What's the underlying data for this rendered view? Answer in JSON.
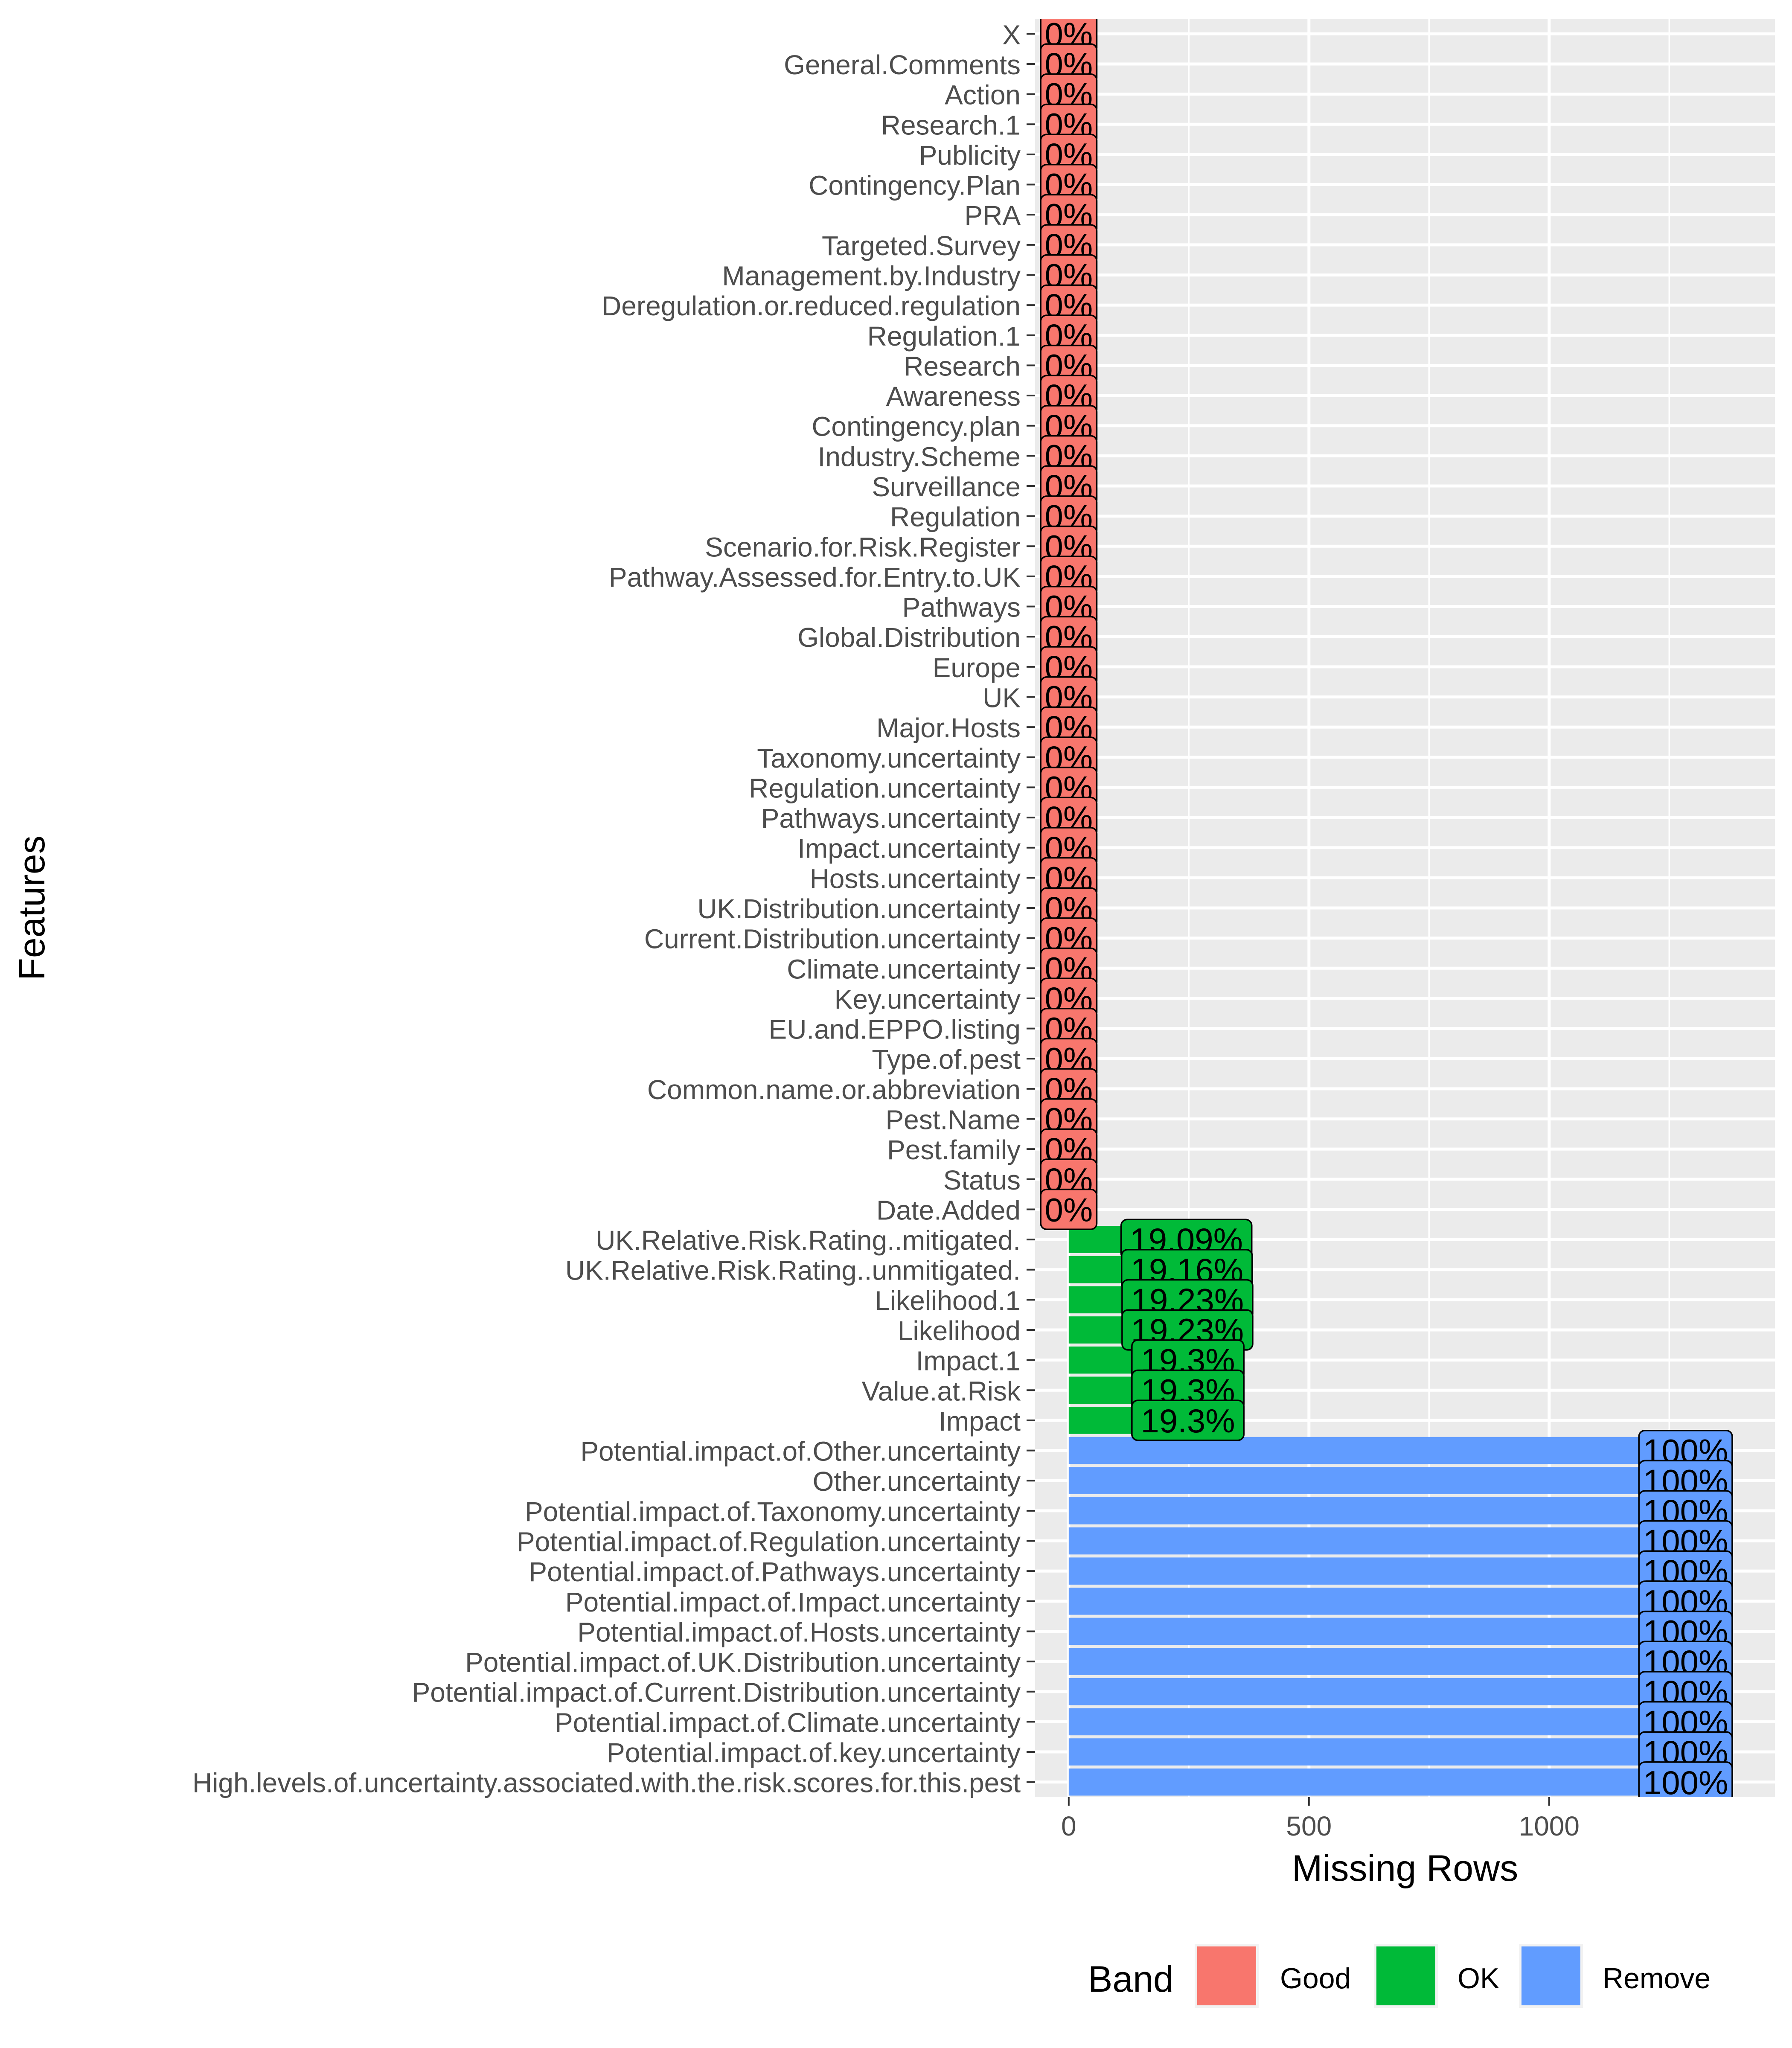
{
  "chart_data": {
    "type": "bar",
    "orientation": "horizontal",
    "xlabel": "Missing Rows",
    "ylabel": "Features",
    "xlim": [
      -70,
      1470
    ],
    "x_ticks": [
      0,
      500,
      1000
    ],
    "grid": true,
    "legend": {
      "title": "Band",
      "position": "bottom",
      "entries": [
        {
          "name": "Good",
          "color": "#F8766D"
        },
        {
          "name": "OK",
          "color": "#00BA38"
        },
        {
          "name": "Remove",
          "color": "#619CFF"
        }
      ]
    },
    "bars": [
      {
        "feature": "X",
        "value": 0,
        "label": "0%",
        "band": "Good"
      },
      {
        "feature": "General.Comments",
        "value": 0,
        "label": "0%",
        "band": "Good"
      },
      {
        "feature": "Action",
        "value": 0,
        "label": "0%",
        "band": "Good"
      },
      {
        "feature": "Research.1",
        "value": 0,
        "label": "0%",
        "band": "Good"
      },
      {
        "feature": "Publicity",
        "value": 0,
        "label": "0%",
        "band": "Good"
      },
      {
        "feature": "Contingency.Plan",
        "value": 0,
        "label": "0%",
        "band": "Good"
      },
      {
        "feature": "PRA",
        "value": 0,
        "label": "0%",
        "band": "Good"
      },
      {
        "feature": "Targeted.Survey",
        "value": 0,
        "label": "0%",
        "band": "Good"
      },
      {
        "feature": "Management.by.Industry",
        "value": 0,
        "label": "0%",
        "band": "Good"
      },
      {
        "feature": "Deregulation.or.reduced.regulation",
        "value": 0,
        "label": "0%",
        "band": "Good"
      },
      {
        "feature": "Regulation.1",
        "value": 0,
        "label": "0%",
        "band": "Good"
      },
      {
        "feature": "Research",
        "value": 0,
        "label": "0%",
        "band": "Good"
      },
      {
        "feature": "Awareness",
        "value": 0,
        "label": "0%",
        "band": "Good"
      },
      {
        "feature": "Contingency.plan",
        "value": 0,
        "label": "0%",
        "band": "Good"
      },
      {
        "feature": "Industry.Scheme",
        "value": 0,
        "label": "0%",
        "band": "Good"
      },
      {
        "feature": "Surveillance",
        "value": 0,
        "label": "0%",
        "band": "Good"
      },
      {
        "feature": "Regulation",
        "value": 0,
        "label": "0%",
        "band": "Good"
      },
      {
        "feature": "Scenario.for.Risk.Register",
        "value": 0,
        "label": "0%",
        "band": "Good"
      },
      {
        "feature": "Pathway.Assessed.for.Entry.to.UK",
        "value": 0,
        "label": "0%",
        "band": "Good"
      },
      {
        "feature": "Pathways",
        "value": 0,
        "label": "0%",
        "band": "Good"
      },
      {
        "feature": "Global.Distribution",
        "value": 0,
        "label": "0%",
        "band": "Good"
      },
      {
        "feature": "Europe",
        "value": 0,
        "label": "0%",
        "band": "Good"
      },
      {
        "feature": "UK",
        "value": 0,
        "label": "0%",
        "band": "Good"
      },
      {
        "feature": "Major.Hosts",
        "value": 0,
        "label": "0%",
        "band": "Good"
      },
      {
        "feature": "Taxonomy.uncertainty",
        "value": 0,
        "label": "0%",
        "band": "Good"
      },
      {
        "feature": "Regulation.uncertainty",
        "value": 0,
        "label": "0%",
        "band": "Good"
      },
      {
        "feature": "Pathways.uncertainty",
        "value": 0,
        "label": "0%",
        "band": "Good"
      },
      {
        "feature": "Impact.uncertainty",
        "value": 0,
        "label": "0%",
        "band": "Good"
      },
      {
        "feature": "Hosts.uncertainty",
        "value": 0,
        "label": "0%",
        "band": "Good"
      },
      {
        "feature": "UK.Distribution.uncertainty",
        "value": 0,
        "label": "0%",
        "band": "Good"
      },
      {
        "feature": "Current.Distribution.uncertainty",
        "value": 0,
        "label": "0%",
        "band": "Good"
      },
      {
        "feature": "Climate.uncertainty",
        "value": 0,
        "label": "0%",
        "band": "Good"
      },
      {
        "feature": "Key.uncertainty",
        "value": 0,
        "label": "0%",
        "band": "Good"
      },
      {
        "feature": "EU.and.EPPO.listing",
        "value": 0,
        "label": "0%",
        "band": "Good"
      },
      {
        "feature": "Type.of.pest",
        "value": 0,
        "label": "0%",
        "band": "Good"
      },
      {
        "feature": "Common.name.or.abbreviation",
        "value": 0,
        "label": "0%",
        "band": "Good"
      },
      {
        "feature": "Pest.Name",
        "value": 0,
        "label": "0%",
        "band": "Good"
      },
      {
        "feature": "Pest.family",
        "value": 0,
        "label": "0%",
        "band": "Good"
      },
      {
        "feature": "Status",
        "value": 0,
        "label": "0%",
        "band": "Good"
      },
      {
        "feature": "Date.Added",
        "value": 0,
        "label": "0%",
        "band": "Good"
      },
      {
        "feature": "UK.Relative.Risk.Rating..mitigated.",
        "value": 245,
        "label": "19.09%",
        "band": "OK"
      },
      {
        "feature": "UK.Relative.Risk.Rating..unmitigated.",
        "value": 246,
        "label": "19.16%",
        "band": "OK"
      },
      {
        "feature": "Likelihood.1",
        "value": 247,
        "label": "19.23%",
        "band": "OK"
      },
      {
        "feature": "Likelihood",
        "value": 247,
        "label": "19.23%",
        "band": "OK"
      },
      {
        "feature": "Impact.1",
        "value": 248,
        "label": "19.3%",
        "band": "OK"
      },
      {
        "feature": "Value.at.Risk",
        "value": 248,
        "label": "19.3%",
        "band": "OK"
      },
      {
        "feature": "Impact",
        "value": 248,
        "label": "19.3%",
        "band": "OK"
      },
      {
        "feature": "Potential.impact.of.Other.uncertainty",
        "value": 1284,
        "label": "100%",
        "band": "Remove"
      },
      {
        "feature": "Other.uncertainty",
        "value": 1284,
        "label": "100%",
        "band": "Remove"
      },
      {
        "feature": "Potential.impact.of.Taxonomy.uncertainty",
        "value": 1284,
        "label": "100%",
        "band": "Remove"
      },
      {
        "feature": "Potential.impact.of.Regulation.uncertainty",
        "value": 1284,
        "label": "100%",
        "band": "Remove"
      },
      {
        "feature": "Potential.impact.of.Pathways.uncertainty",
        "value": 1284,
        "label": "100%",
        "band": "Remove"
      },
      {
        "feature": "Potential.impact.of.Impact.uncertainty",
        "value": 1284,
        "label": "100%",
        "band": "Remove"
      },
      {
        "feature": "Potential.impact.of.Hosts.uncertainty",
        "value": 1284,
        "label": "100%",
        "band": "Remove"
      },
      {
        "feature": "Potential.impact.of.UK.Distribution.uncertainty",
        "value": 1284,
        "label": "100%",
        "band": "Remove"
      },
      {
        "feature": "Potential.impact.of.Current.Distribution.uncertainty",
        "value": 1284,
        "label": "100%",
        "band": "Remove"
      },
      {
        "feature": "Potential.impact.of.Climate.uncertainty",
        "value": 1284,
        "label": "100%",
        "band": "Remove"
      },
      {
        "feature": "Potential.impact.of.key.uncertainty",
        "value": 1284,
        "label": "100%",
        "band": "Remove"
      },
      {
        "feature": "High.levels.of.uncertainty.associated.with.the.risk.scores.for.this.pest",
        "value": 1284,
        "label": "100%",
        "band": "Remove"
      }
    ]
  }
}
